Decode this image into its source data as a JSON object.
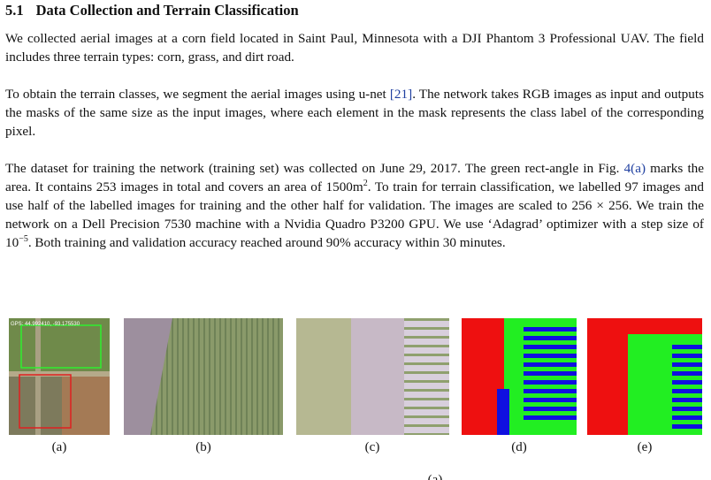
{
  "section": {
    "number": "5.1",
    "title": "Data Collection and Terrain Classification"
  },
  "paragraphs": [
    [
      "We collected aerial images at a corn field located in Saint Paul, Minnesota with a DJI Phantom 3 Professional UAV. The field includes three terrain types: corn, grass, and dirt road."
    ],
    [
      "To obtain the terrain classes, we segment the aerial images using u-net ",
      "[21]",
      ". The network takes RGB images as input and outputs the masks of the same size as the input images, where each element in the mask represents the class label of the corresponding pixel."
    ],
    [
      "The dataset for training the network (training set) was collected on June 29, 2017. The green rect-angle in Fig. ",
      "4(a)",
      " marks the area. It contains 253 images in total and covers an area of 1500m",
      "2",
      ". To train for terrain classification, we labelled 97 images and use half of the labelled images for training and the other half for validation. The images are scaled to 256 × 256. We train the network on a Dell Precision 7530 machine with a Nvidia Quadro P3200 GPU. We use ‘Adagrad’ optimizer with a step size of 10",
      "−5",
      ". Both training and validation accuracy reached around 90% accuracy within 30 minutes."
    ]
  ],
  "figure": {
    "overlay_text": "GPS: 44.992410, -93.175530",
    "subcaptions": [
      "(a)",
      "(b)",
      "(c)",
      "(d)",
      "(e)"
    ],
    "caption_fragment": "(a)"
  }
}
